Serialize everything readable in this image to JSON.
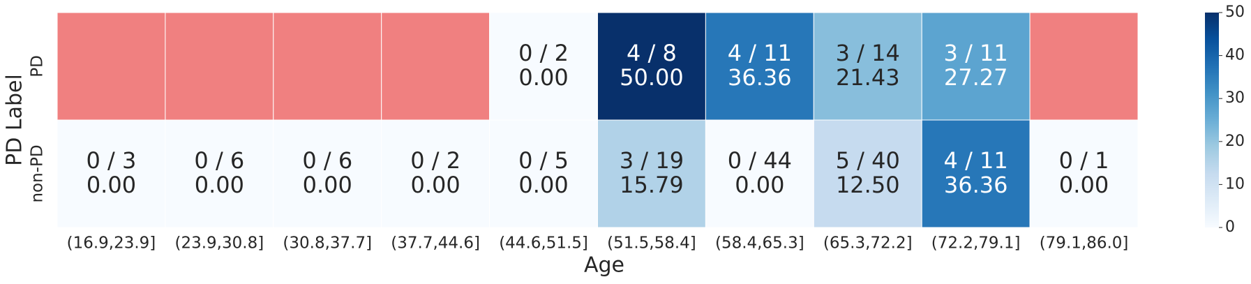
{
  "chart_data": {
    "type": "heatmap",
    "xlabel": "Age",
    "ylabel": "PD Label",
    "categories": [
      "(16.9,23.9]",
      "(23.9,30.8]",
      "(30.8,37.7]",
      "(37.7,44.6]",
      "(44.6,51.5]",
      "(51.5,58.4]",
      "(58.4,65.3]",
      "(65.3,72.2]",
      "(72.2,79.1]",
      "(79.1,86.0]"
    ],
    "rows": [
      "PD",
      "non-PD"
    ],
    "values": [
      [
        null,
        null,
        null,
        null,
        0,
        50,
        36.36,
        21.43,
        27.27,
        null
      ],
      [
        0,
        0,
        0,
        0,
        0,
        15.79,
        0,
        12.5,
        36.36,
        0
      ]
    ],
    "value_labels": [
      [
        null,
        null,
        null,
        null,
        "0.00",
        "50.00",
        "36.36",
        "21.43",
        "27.27",
        null
      ],
      [
        "0.00",
        "0.00",
        "0.00",
        "0.00",
        "0.00",
        "15.79",
        "0.00",
        "12.50",
        "36.36",
        "0.00"
      ]
    ],
    "counts": [
      [
        null,
        null,
        null,
        null,
        "0 / 2",
        "4 / 8",
        "4 / 11",
        "3 / 14",
        "3 / 11",
        null
      ],
      [
        "0 / 3",
        "0 / 6",
        "0 / 6",
        "0 / 2",
        "0 / 5",
        "3 / 19",
        "0 / 44",
        "5 / 40",
        "4 / 11",
        "0 / 1"
      ]
    ],
    "missing_color": "#f08080",
    "colormap": [
      "#f7fbff",
      "#deebf7",
      "#c6dbef",
      "#9ecae1",
      "#6baed6",
      "#4292c6",
      "#2171b5",
      "#08519c",
      "#08306b"
    ],
    "clim": [
      0,
      50
    ],
    "colorbar_ticks": [
      0,
      10,
      20,
      30,
      40,
      50
    ]
  }
}
